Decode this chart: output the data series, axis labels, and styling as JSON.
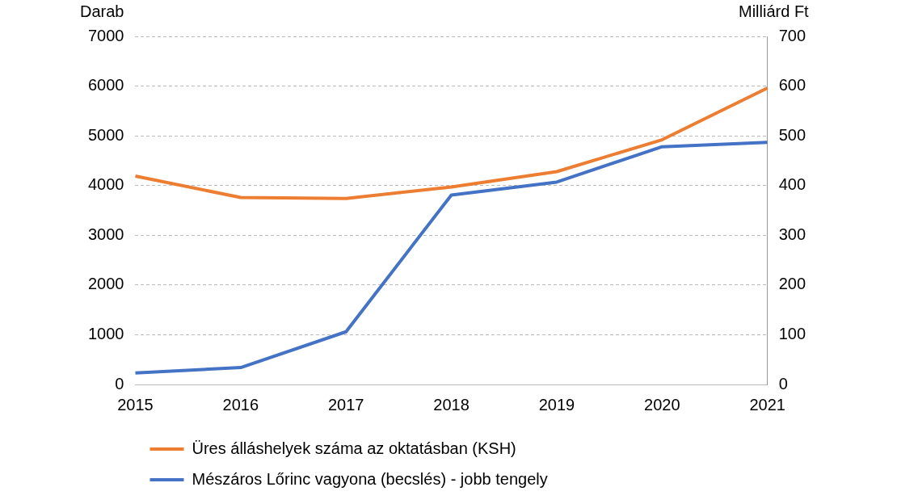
{
  "chart_data": {
    "type": "line",
    "ylabel": "Darab",
    "y2label": "Milliárd Ft",
    "categories": [
      "2015",
      "2016",
      "2017",
      "2018",
      "2019",
      "2020",
      "2021"
    ],
    "series": [
      {
        "name": "Üres álláshelyek száma az oktatásban (KSH)",
        "color": "#ed7d31",
        "values": [
          4190,
          3760,
          3740,
          3970,
          4280,
          4920,
          5960
        ]
      },
      {
        "name": "Mészáros Lőrinc vagyona (becslés) - jobb tengely",
        "color": "#4472c4",
        "axis": "y2",
        "values": [
          23,
          34,
          106,
          381,
          407,
          478,
          487
        ]
      }
    ],
    "ylim": [
      0,
      7000
    ],
    "yticks": [
      0,
      1000,
      2000,
      3000,
      4000,
      5000,
      6000,
      7000
    ],
    "y2lim": [
      0,
      700
    ],
    "y2ticks": [
      0,
      100,
      200,
      300,
      400,
      500,
      600,
      700
    ],
    "grid": "y",
    "legend": "bottom",
    "marker": "none",
    "line_style": "solid"
  }
}
